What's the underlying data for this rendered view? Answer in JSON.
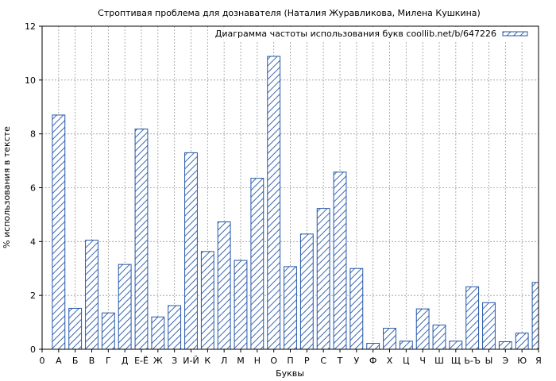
{
  "chart_data": {
    "type": "bar",
    "title": "Строптивая проблема для дознавателя (Наталия Журавликова, Милена Кушкина)",
    "xlabel": "Буквы",
    "ylabel": "% использования в тексте",
    "ylim": [
      0,
      12
    ],
    "yticks": [
      "0",
      "2",
      "4",
      "6",
      "8",
      "10",
      "12"
    ],
    "x_start_label": "0",
    "categories": [
      "А",
      "Б",
      "В",
      "Г",
      "Д",
      "Е-Ё",
      "Ж",
      "З",
      "И-Й",
      "К",
      "Л",
      "М",
      "Н",
      "О",
      "П",
      "Р",
      "С",
      "Т",
      "У",
      "Ф",
      "Х",
      "Ц",
      "Ч",
      "Ш",
      "Щ",
      "Ь-Ъ",
      "Ы",
      "Э",
      "Ю",
      "Я"
    ],
    "series": [
      {
        "name": "Диаграмма частоты использования букв coollib.net/b/647226",
        "values": [
          8.7,
          1.52,
          4.05,
          1.35,
          3.15,
          8.18,
          1.2,
          1.62,
          7.3,
          3.63,
          4.73,
          3.3,
          6.35,
          10.88,
          3.07,
          4.28,
          5.23,
          6.58,
          3.0,
          0.22,
          0.78,
          0.3,
          1.5,
          0.9,
          0.3,
          2.32,
          1.73,
          0.28,
          0.6,
          2.48
        ]
      }
    ],
    "grid": true,
    "legend_position": "top-right",
    "bar_color": "#2456a8",
    "bar_fill": "#ffffff"
  }
}
